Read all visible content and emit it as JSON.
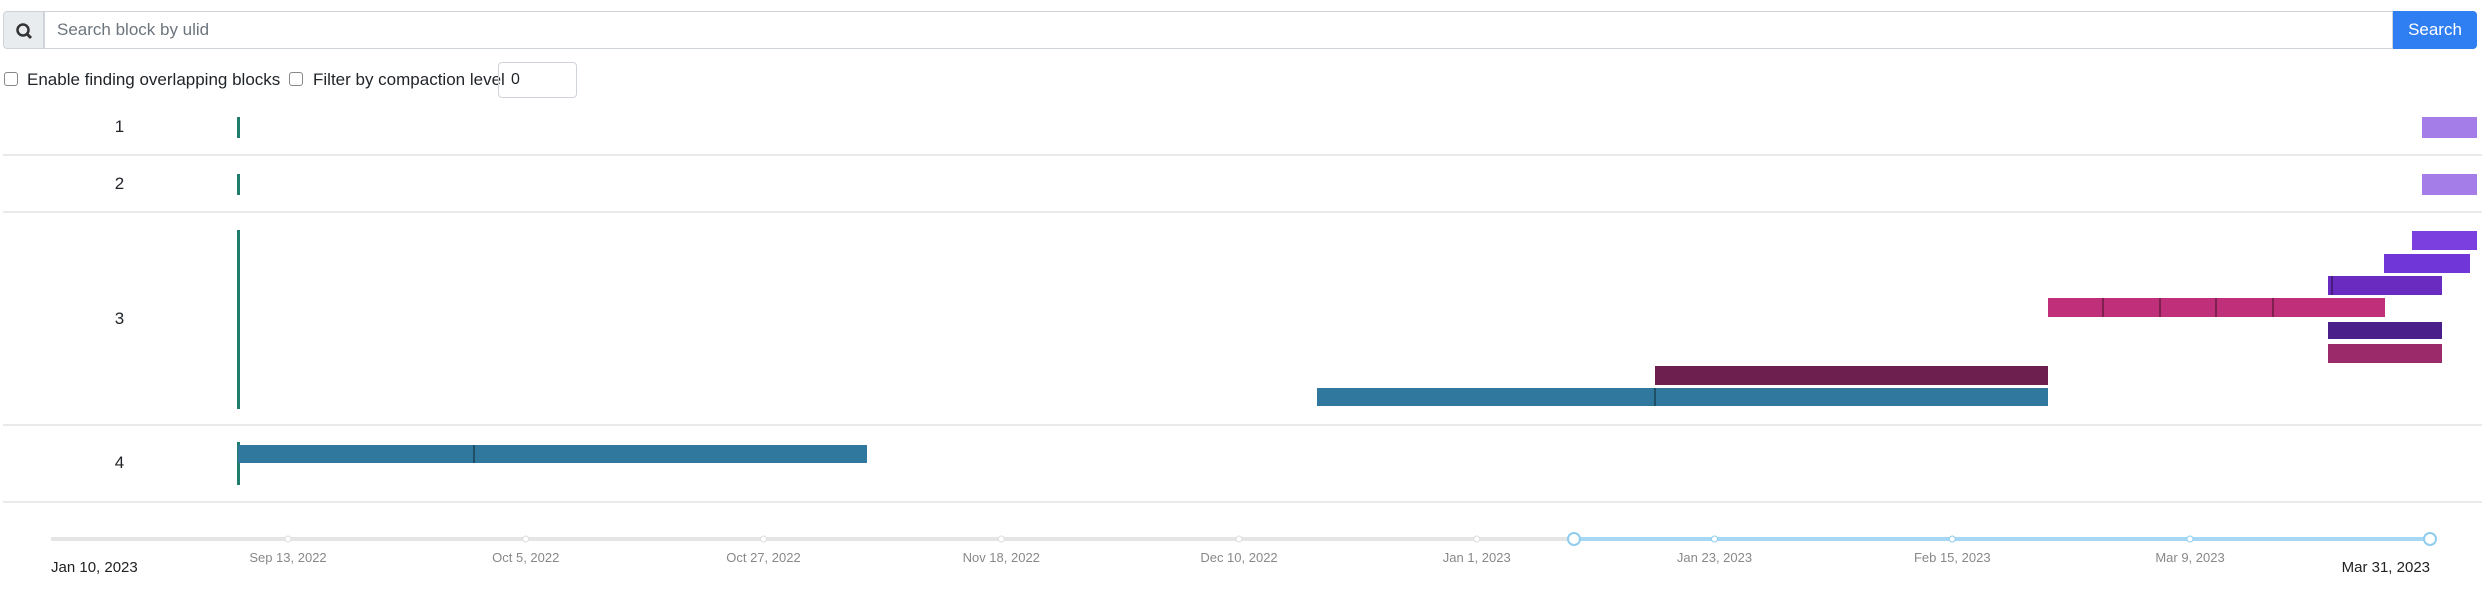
{
  "search": {
    "placeholder": "Search block by ulid",
    "button": "Search"
  },
  "options": {
    "overlapping": "Enable finding overlapping blocks",
    "compaction": "Filter by compaction level",
    "level": "0"
  },
  "rows": [
    "1",
    "2",
    "3",
    "4"
  ],
  "timeline": {
    "ticks": [
      "Sep 13, 2022",
      "Oct 5, 2022",
      "Oct 27, 2022",
      "Nov 18, 2022",
      "Dec 10, 2022",
      "Jan 1, 2023",
      "Jan 23, 2023",
      "Feb 15, 2023",
      "Mar 9, 2023"
    ],
    "start": "Jan 10, 2023",
    "end": "Mar 31, 2023"
  }
}
